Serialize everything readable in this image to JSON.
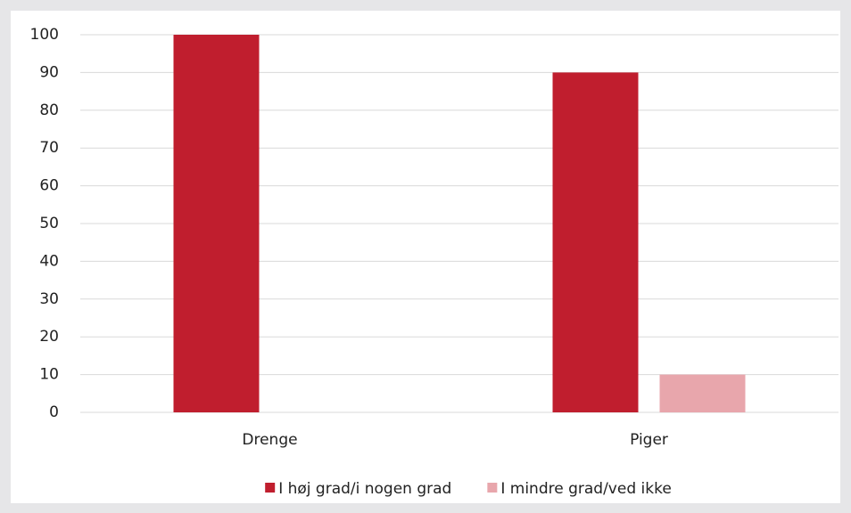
{
  "chart_data": {
    "type": "bar",
    "categories": [
      "Drenge",
      "Piger"
    ],
    "series": [
      {
        "name": "I høj grad/i nogen grad",
        "color": "#c01e2e",
        "values": [
          100,
          90
        ]
      },
      {
        "name": "I mindre grad/ved ikke",
        "color": "#e8a6ac",
        "values": [
          0,
          10
        ]
      }
    ],
    "ylim": [
      0,
      100
    ],
    "yticks": [
      0,
      10,
      20,
      30,
      40,
      50,
      60,
      70,
      80,
      90,
      100
    ],
    "grid": true,
    "legend": "bottom"
  }
}
